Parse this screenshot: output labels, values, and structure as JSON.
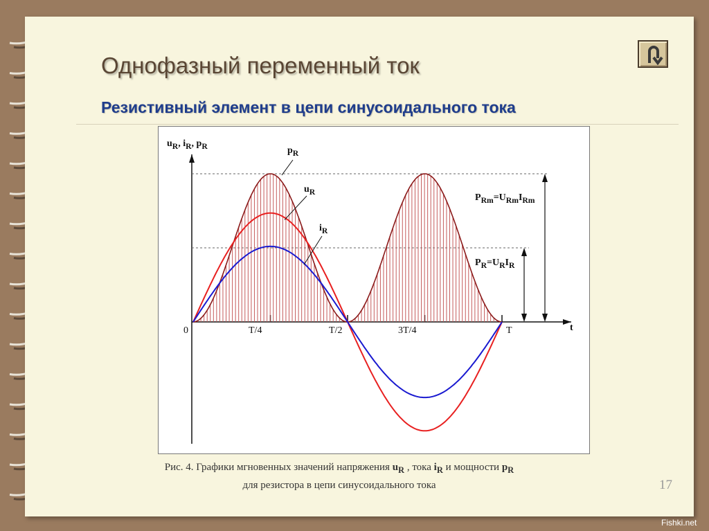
{
  "slide": {
    "title": "Однофазный переменный ток",
    "subtitle": "Резистивный элемент в цепи синусоидального тока",
    "page_number": "17",
    "watermark": "Fishki.net",
    "nav_button_icon": "u-turn-back-arrow-icon"
  },
  "figure": {
    "y_axis_label": [
      "u",
      "R",
      ", i",
      "R",
      ",  p",
      "R"
    ],
    "x_axis_label": "t",
    "origin_label": "0",
    "x_ticks": [
      "T/4",
      "T/2",
      "3T/4",
      "T"
    ],
    "curve_labels": {
      "p": [
        "p",
        "R"
      ],
      "u": [
        "u",
        "R"
      ],
      "i": [
        "i",
        "R"
      ]
    },
    "annotations": {
      "pm": [
        "P",
        "Rm",
        "=U",
        "Rm",
        "I",
        "Rm"
      ],
      "p": [
        "P",
        "R",
        "=U",
        "R",
        "I",
        "R"
      ]
    },
    "caption_line1": [
      "Рис. 4. Графики мгновенных значений напряжения ",
      "u",
      "R",
      " , тока ",
      "i",
      "R",
      " и мощности ",
      "p",
      "R"
    ],
    "caption_line2": "для резистора  в цепи синусоидального тока"
  },
  "chart_data": {
    "type": "line",
    "xlabel": "t",
    "ylabel": "uR, iR, pR",
    "x_ticks": [
      "0",
      "T/4",
      "T/2",
      "3T/4",
      "T"
    ],
    "x": [
      0,
      0.125,
      0.25,
      0.375,
      0.5,
      0.625,
      0.75,
      0.875,
      1
    ],
    "x_units": "T",
    "series": [
      {
        "name": "pR",
        "color": "#8b1a1a",
        "hatched": true,
        "values": [
          0,
          1,
          2,
          1,
          0,
          1,
          2,
          1,
          0
        ]
      },
      {
        "name": "uR",
        "color": "#e82020",
        "values": [
          0,
          1.04,
          1.47,
          1.04,
          0,
          -1.04,
          -1.47,
          -1.04,
          0
        ]
      },
      {
        "name": "iR",
        "color": "#1a1ad0",
        "values": [
          0,
          0.72,
          1.02,
          0.72,
          0,
          -0.72,
          -1.02,
          -0.72,
          0
        ]
      }
    ],
    "peak_power": "PRm=URmIRm",
    "average_power": "PR=URIR",
    "average_power_value": 1,
    "peak_power_value": 2
  }
}
